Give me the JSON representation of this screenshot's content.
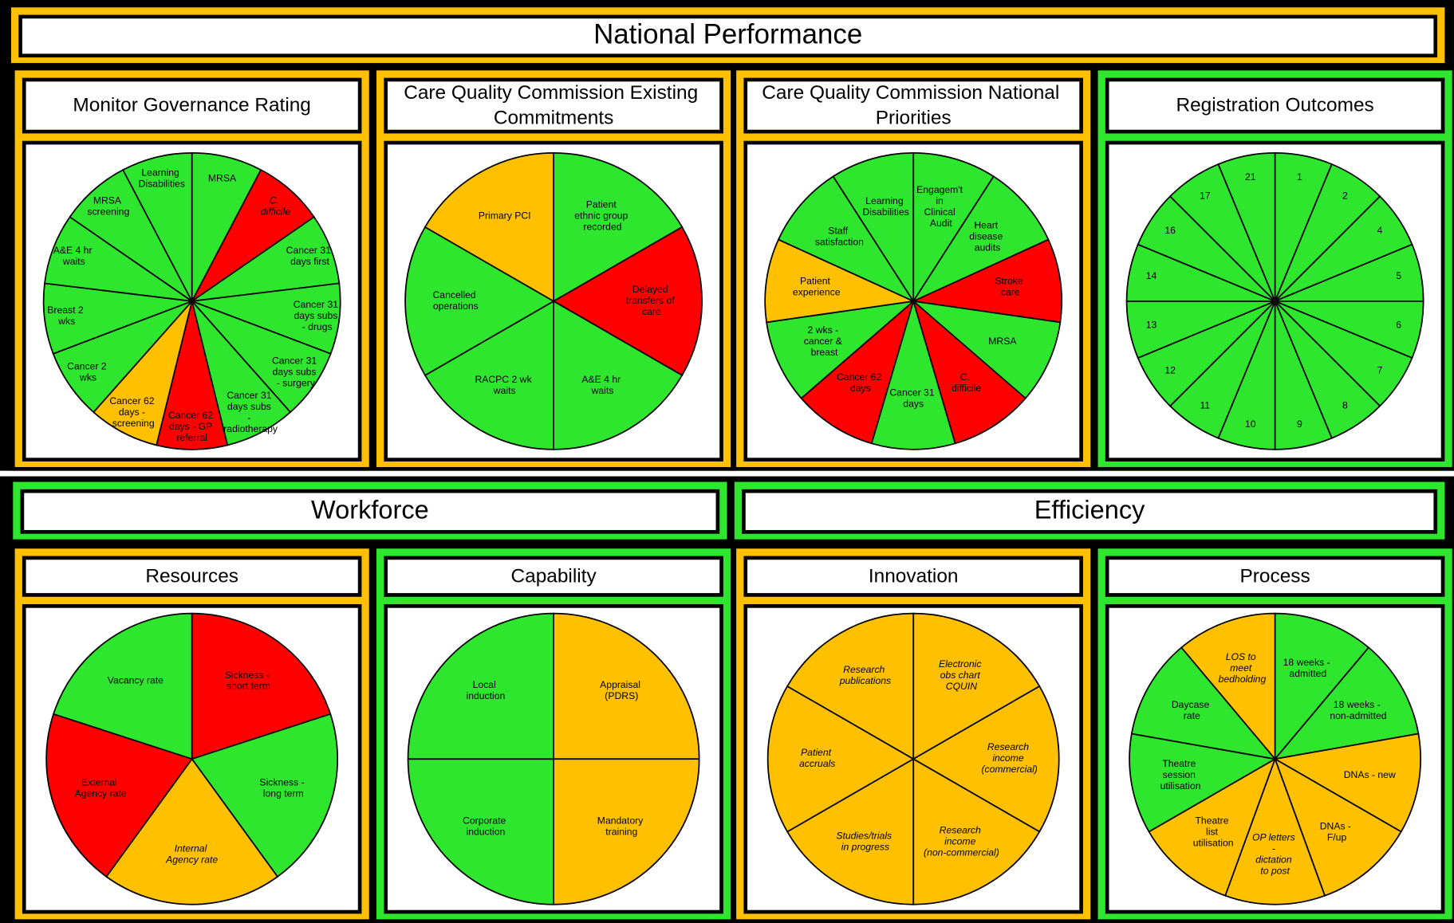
{
  "sections": [
    {
      "title": "National Performance",
      "color": "#ffc000",
      "panels": [
        {
          "title": "Monitor Governance Rating",
          "color": "#ffc000",
          "slices": [
            {
              "label": "MRSA",
              "color": "#2ee62e"
            },
            {
              "label": "C. difficile",
              "color": "#ff0000",
              "italic": true
            },
            {
              "label": "Cancer 31 days first",
              "color": "#2ee62e"
            },
            {
              "label": "Cancer 31 days subs - drugs",
              "color": "#2ee62e"
            },
            {
              "label": "Cancer 31 days subs - surgery",
              "color": "#2ee62e"
            },
            {
              "label": "Cancer 31 days subs - radiotherapy",
              "color": "#2ee62e"
            },
            {
              "label": "Cancer 62 days - GP referral",
              "color": "#ff0000"
            },
            {
              "label": "Cancer 62 days - screening",
              "color": "#ffc000"
            },
            {
              "label": "Cancer 2 wks",
              "color": "#2ee62e"
            },
            {
              "label": "Breast 2 wks",
              "color": "#2ee62e"
            },
            {
              "label": "A&E 4 hr waits",
              "color": "#2ee62e"
            },
            {
              "label": "MRSA screening",
              "color": "#2ee62e"
            },
            {
              "label": "Learning Disabilities",
              "color": "#2ee62e"
            }
          ]
        },
        {
          "title": "Care Quality Commission Existing Commitments",
          "color": "#ffc000",
          "slices": [
            {
              "label": "Patient ethnic group recorded",
              "color": "#2ee62e"
            },
            {
              "label": "Delayed transfers of care",
              "color": "#ff0000"
            },
            {
              "label": "A&E 4 hr waits",
              "color": "#2ee62e"
            },
            {
              "label": "RACPC 2 wk waits",
              "color": "#2ee62e"
            },
            {
              "label": "Cancelled operations",
              "color": "#2ee62e"
            },
            {
              "label": "Primary PCI",
              "color": "#ffc000"
            }
          ]
        },
        {
          "title": "Care Quality Commission National Priorities",
          "color": "#ffc000",
          "slices": [
            {
              "label": "Engagem't in Clinical Audit",
              "color": "#2ee62e"
            },
            {
              "label": "Heart disease audits",
              "color": "#2ee62e"
            },
            {
              "label": "Stroke care",
              "color": "#ff0000"
            },
            {
              "label": "MRSA",
              "color": "#2ee62e"
            },
            {
              "label": "C. difficile",
              "color": "#ff0000"
            },
            {
              "label": "Cancer 31 days",
              "color": "#2ee62e"
            },
            {
              "label": "Cancer 62 days",
              "color": "#ff0000"
            },
            {
              "label": "2 wks - cancer & breast",
              "color": "#2ee62e"
            },
            {
              "label": "Patient experience",
              "color": "#ffc000"
            },
            {
              "label": "Staff satisfaction",
              "color": "#2ee62e"
            },
            {
              "label": "Learning Disabilities",
              "color": "#2ee62e"
            }
          ]
        },
        {
          "title": "Registration Outcomes",
          "color": "#2ee62e",
          "slices": [
            {
              "label": "1",
              "color": "#2ee62e"
            },
            {
              "label": "2",
              "color": "#2ee62e"
            },
            {
              "label": "4",
              "color": "#2ee62e"
            },
            {
              "label": "5",
              "color": "#2ee62e"
            },
            {
              "label": "6",
              "color": "#2ee62e"
            },
            {
              "label": "7",
              "color": "#2ee62e"
            },
            {
              "label": "8",
              "color": "#2ee62e"
            },
            {
              "label": "9",
              "color": "#2ee62e"
            },
            {
              "label": "10",
              "color": "#2ee62e"
            },
            {
              "label": "11",
              "color": "#2ee62e"
            },
            {
              "label": "12",
              "color": "#2ee62e"
            },
            {
              "label": "13",
              "color": "#2ee62e"
            },
            {
              "label": "14",
              "color": "#2ee62e"
            },
            {
              "label": "16",
              "color": "#2ee62e"
            },
            {
              "label": "17",
              "color": "#2ee62e"
            },
            {
              "label": "21",
              "color": "#2ee62e"
            }
          ]
        }
      ]
    },
    {
      "title": "Workforce",
      "color": "#2ee62e",
      "panels": [
        {
          "title": "Resources",
          "color": "#ffc000",
          "slices": [
            {
              "label": "Sickness - short term",
              "color": "#ff0000"
            },
            {
              "label": "Sickness - long term",
              "color": "#2ee62e"
            },
            {
              "label": "Internal Agency rate",
              "color": "#ffc000",
              "italic": true
            },
            {
              "label": "External Agency rate",
              "color": "#ff0000"
            },
            {
              "label": "Vacancy rate",
              "color": "#2ee62e"
            }
          ]
        },
        {
          "title": "Capability",
          "color": "#2ee62e",
          "slices": [
            {
              "label": "Appraisal (PDRS)",
              "color": "#ffc000"
            },
            {
              "label": "Mandatory training",
              "color": "#ffc000"
            },
            {
              "label": "Corporate induction",
              "color": "#2ee62e"
            },
            {
              "label": "Local induction",
              "color": "#2ee62e"
            }
          ]
        }
      ]
    },
    {
      "title": "Efficiency",
      "color": "#2ee62e",
      "panels": [
        {
          "title": "Innovation",
          "color": "#ffc000",
          "slices": [
            {
              "label": "Electronic obs chart CQUIN",
              "color": "#ffc000",
              "italic": true
            },
            {
              "label": "Research income (commercial)",
              "color": "#ffc000",
              "italic": true
            },
            {
              "label": "Research income (non-commercial)",
              "color": "#ffc000",
              "italic": true
            },
            {
              "label": "Studies/trials in progress",
              "color": "#ffc000",
              "italic": true
            },
            {
              "label": "Patient accruals",
              "color": "#ffc000",
              "italic": true
            },
            {
              "label": "Research publications",
              "color": "#ffc000",
              "italic": true
            }
          ]
        },
        {
          "title": "Process",
          "color": "#2ee62e",
          "slices": [
            {
              "label": "18 weeks - admitted",
              "color": "#2ee62e"
            },
            {
              "label": "18 weeks - non-admitted",
              "color": "#2ee62e"
            },
            {
              "label": "DNAs - new",
              "color": "#ffc000"
            },
            {
              "label": "DNAs - F/up",
              "color": "#ffc000"
            },
            {
              "label": "OP letters - dictation to post",
              "color": "#ffc000",
              "italic": true
            },
            {
              "label": "Theatre list utilisation",
              "color": "#ffc000"
            },
            {
              "label": "Theatre session utilisation",
              "color": "#2ee62e"
            },
            {
              "label": "Daycase rate",
              "color": "#2ee62e"
            },
            {
              "label": "LOS to meet bedholding",
              "color": "#ffc000",
              "italic": true
            }
          ]
        }
      ]
    }
  ]
}
